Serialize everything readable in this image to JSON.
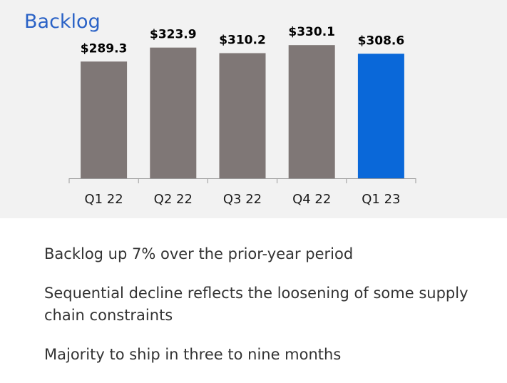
{
  "colors": {
    "panel_background": "#f2f2f2",
    "title": "#2a62c6",
    "bar_default": "#7f7776",
    "bar_highlight": "#0a68d9",
    "axis": "#9b9b9b"
  },
  "chart_data": {
    "type": "bar",
    "title": "Backlog",
    "xlabel": "",
    "ylabel": "",
    "ylim": [
      0,
      380
    ],
    "categories": [
      "Q1 22",
      "Q2 22",
      "Q3 22",
      "Q4 22",
      "Q1 23"
    ],
    "values": [
      289.3,
      323.9,
      310.2,
      330.1,
      308.6
    ],
    "data_labels": [
      "$289.3",
      "$323.9",
      "$310.2",
      "$330.1",
      "$308.6"
    ],
    "highlighted_category": "Q1 23",
    "grid": false,
    "legend": "none"
  },
  "bullets": [
    "Backlog up 7% over the prior-year period",
    "Sequential decline reflects the loosening of some supply chain constraints",
    "Majority to ship in three to nine months"
  ]
}
